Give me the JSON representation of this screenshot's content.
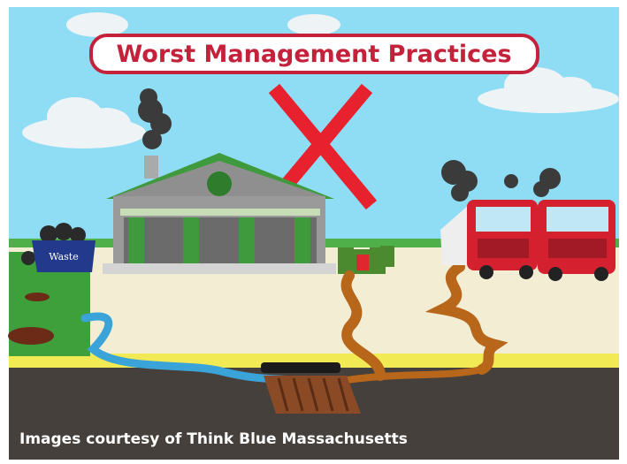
{
  "title": "Worst Management Practices",
  "dumpster_label": "Waste",
  "caption": "Images courtesy of Think Blue Massachusetts"
}
